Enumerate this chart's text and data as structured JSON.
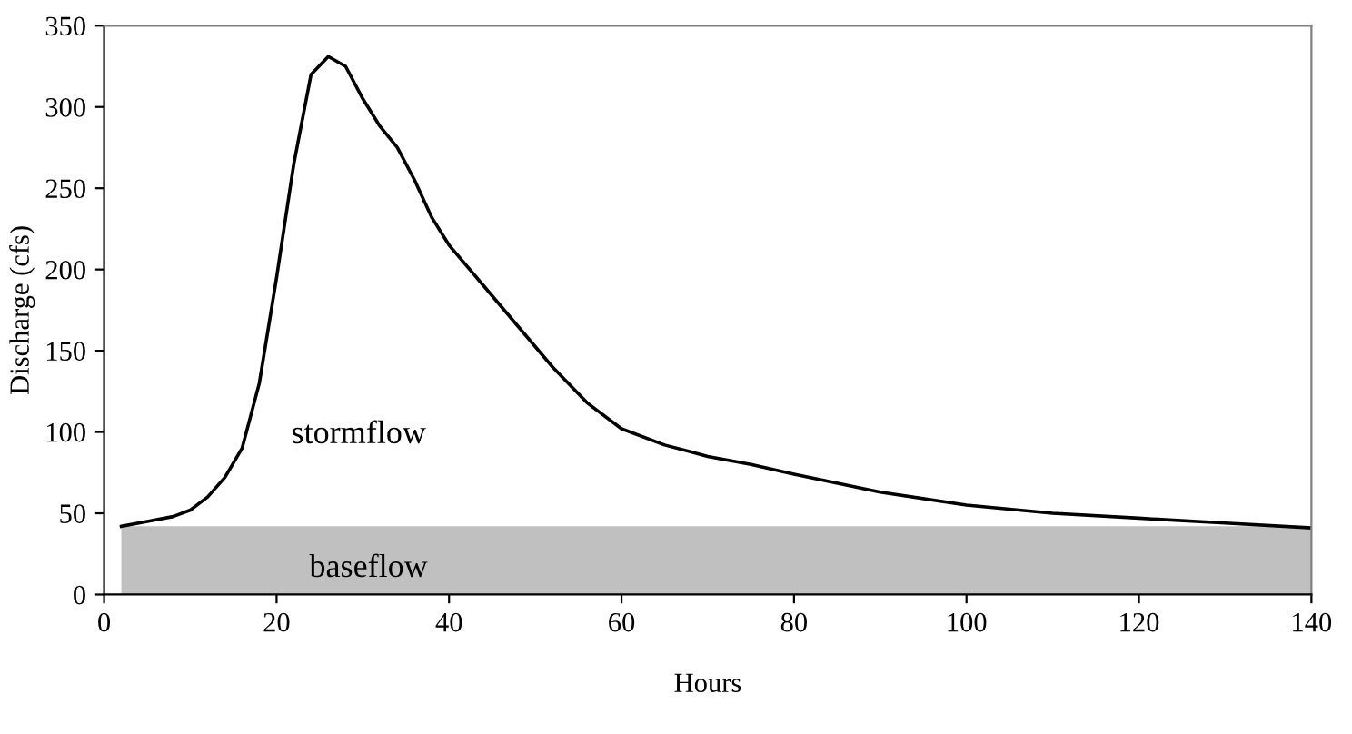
{
  "chart_data": {
    "type": "line",
    "xlabel": "Hours",
    "ylabel": "Discharge (cfs)",
    "xlim": [
      0,
      140
    ],
    "xticks": [
      0,
      20,
      40,
      60,
      80,
      100,
      120,
      140
    ],
    "ylim": [
      0,
      350
    ],
    "yticks": [
      0,
      50,
      100,
      150,
      200,
      250,
      300,
      350
    ],
    "grid": false,
    "legend": false,
    "marker": "none",
    "line_style": "solid",
    "series": [
      {
        "type": "area",
        "color": "#c0c0c0",
        "x": [
          2,
          140
        ],
        "values": [
          42,
          42
        ]
      },
      {
        "color": "#000000",
        "x": [
          2,
          5,
          8,
          10,
          12,
          14,
          16,
          18,
          20,
          22,
          24,
          26,
          28,
          30,
          32,
          34,
          36,
          38,
          40,
          44,
          48,
          52,
          56,
          60,
          65,
          70,
          75,
          80,
          90,
          100,
          110,
          120,
          130,
          140
        ],
        "values": [
          42,
          45,
          48,
          52,
          60,
          72,
          90,
          130,
          195,
          265,
          320,
          331,
          325,
          305,
          288,
          275,
          255,
          232,
          215,
          190,
          165,
          140,
          118,
          102,
          92,
          85,
          80,
          74,
          63,
          55,
          50,
          47,
          44,
          41
        ]
      }
    ],
    "annotations": [
      "stormflow",
      "baseflow"
    ]
  }
}
